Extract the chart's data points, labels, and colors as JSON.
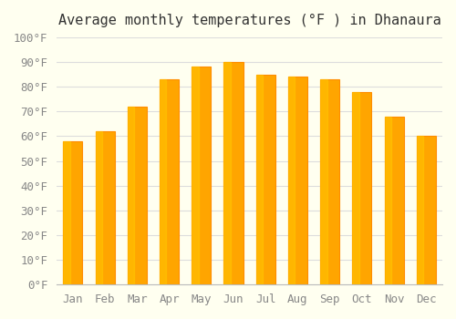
{
  "months": [
    "Jan",
    "Feb",
    "Mar",
    "Apr",
    "May",
    "Jun",
    "Jul",
    "Aug",
    "Sep",
    "Oct",
    "Nov",
    "Dec"
  ],
  "temperatures": [
    58,
    62,
    72,
    83,
    88,
    90,
    85,
    84,
    83,
    78,
    68,
    60
  ],
  "bar_color": "#FFA500",
  "bar_edge_color": "#FF8C00",
  "title": "Average monthly temperatures (°F ) in Dhanaura",
  "ylabel": "",
  "ylim": [
    0,
    100
  ],
  "yticks": [
    0,
    10,
    20,
    30,
    40,
    50,
    60,
    70,
    80,
    90,
    100
  ],
  "ytick_labels": [
    "0°F",
    "10°F",
    "20°F",
    "30°F",
    "40°F",
    "50°F",
    "60°F",
    "70°F",
    "80°F",
    "90°F",
    "100°F"
  ],
  "background_color": "#FFFFF0",
  "grid_color": "#DDDDDD",
  "title_fontsize": 11,
  "tick_fontsize": 9
}
